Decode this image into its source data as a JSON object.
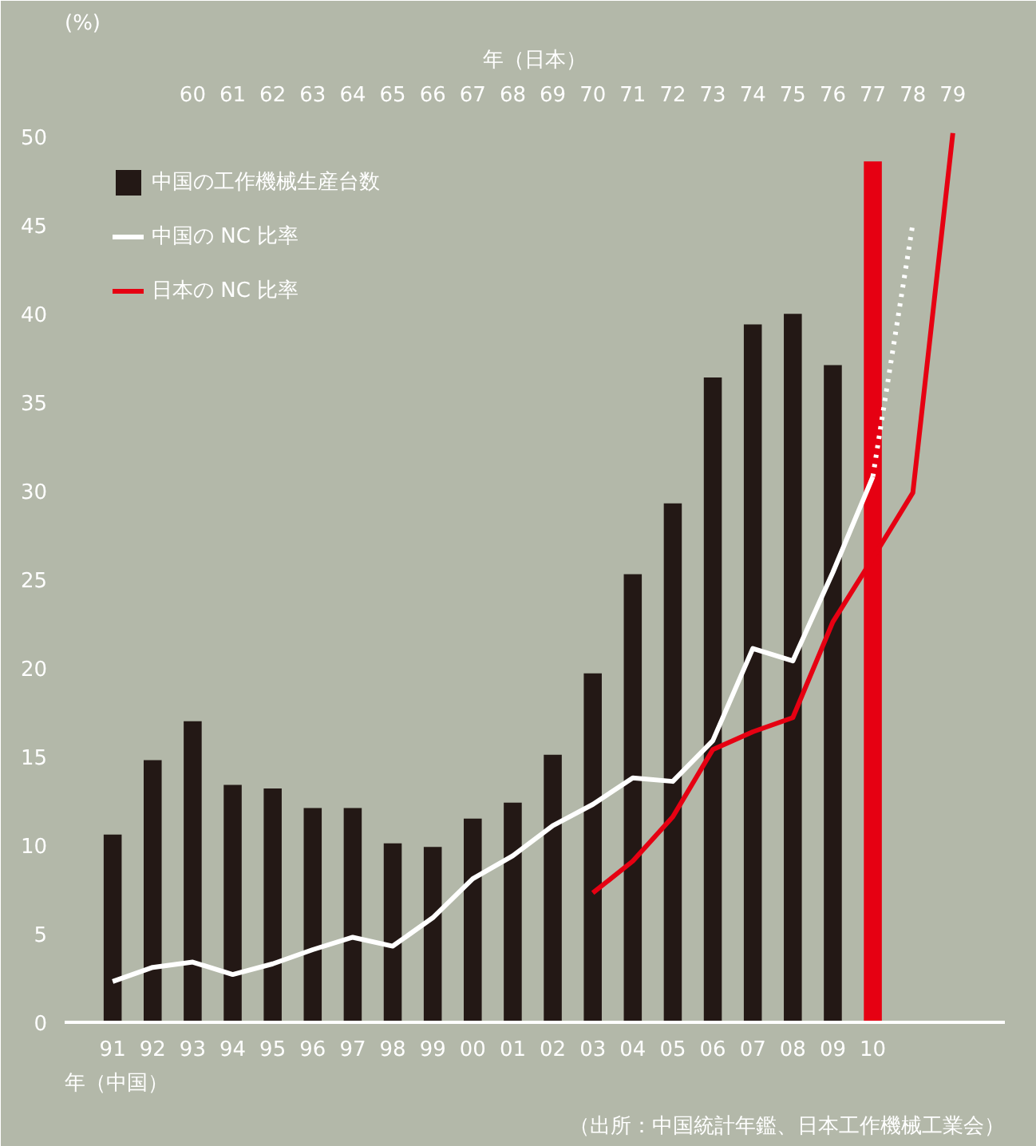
{
  "chart_data": {
    "type": "bar",
    "ylabel": "(%)",
    "xlabel": "年（中国）",
    "x2label": "年（日本）",
    "annotations": [
      "（出所：中国統計年鑑、日本工作機械工業会）"
    ],
    "xlim": [
      1989.8,
      2013.3
    ],
    "xticks": [
      {
        "value": 1991,
        "label": "91"
      },
      {
        "value": 1992,
        "label": "92"
      },
      {
        "value": 1993,
        "label": "93"
      },
      {
        "value": 1994,
        "label": "94"
      },
      {
        "value": 1995,
        "label": "95"
      },
      {
        "value": 1996,
        "label": "96"
      },
      {
        "value": 1997,
        "label": "97"
      },
      {
        "value": 1998,
        "label": "98"
      },
      {
        "value": 1999,
        "label": "99"
      },
      {
        "value": 2000,
        "label": "00"
      },
      {
        "value": 2001,
        "label": "01"
      },
      {
        "value": 2002,
        "label": "02"
      },
      {
        "value": 2003,
        "label": "03"
      },
      {
        "value": 2004,
        "label": "04"
      },
      {
        "value": 2005,
        "label": "05"
      },
      {
        "value": 2006,
        "label": "06"
      },
      {
        "value": 2007,
        "label": "07"
      },
      {
        "value": 2008,
        "label": "08"
      },
      {
        "value": 2009,
        "label": "09"
      },
      {
        "value": 2010,
        "label": "10"
      }
    ],
    "x2lim": [
      1956.8,
      1980.3
    ],
    "x2ticks": [
      {
        "value": 1960,
        "label": "60"
      },
      {
        "value": 1961,
        "label": "61"
      },
      {
        "value": 1962,
        "label": "62"
      },
      {
        "value": 1963,
        "label": "63"
      },
      {
        "value": 1964,
        "label": "64"
      },
      {
        "value": 1965,
        "label": "65"
      },
      {
        "value": 1966,
        "label": "66"
      },
      {
        "value": 1967,
        "label": "67"
      },
      {
        "value": 1968,
        "label": "68"
      },
      {
        "value": 1969,
        "label": "69"
      },
      {
        "value": 1970,
        "label": "70"
      },
      {
        "value": 1971,
        "label": "71"
      },
      {
        "value": 1972,
        "label": "72"
      },
      {
        "value": 1973,
        "label": "73"
      },
      {
        "value": 1974,
        "label": "74"
      },
      {
        "value": 1975,
        "label": "75"
      },
      {
        "value": 1976,
        "label": "76"
      },
      {
        "value": 1977,
        "label": "77"
      },
      {
        "value": 1978,
        "label": "78"
      },
      {
        "value": 1979,
        "label": "79"
      }
    ],
    "ylim": [
      0,
      51
    ],
    "yticks": [
      0,
      5,
      10,
      15,
      20,
      25,
      30,
      35,
      40,
      45,
      50
    ],
    "legend": "top left",
    "series": [
      {
        "name": "中国の工作機械生産台数",
        "x": [
          1991,
          1992,
          1993,
          1994,
          1995,
          1996,
          1997,
          1998,
          1999,
          2000,
          2001,
          2002,
          2003,
          2004,
          2005,
          2006,
          2007,
          2008,
          2009,
          2010
        ],
        "values": [
          10.6,
          14.8,
          17.0,
          13.4,
          13.2,
          12.1,
          12.1,
          10.1,
          9.9,
          11.5,
          12.4,
          15.1,
          19.7,
          25.3,
          29.3,
          36.4,
          39.4,
          40.0,
          37.1,
          48.6
        ],
        "colors": [
          "#231815",
          "#231815",
          "#231815",
          "#231815",
          "#231815",
          "#231815",
          "#231815",
          "#231815",
          "#231815",
          "#231815",
          "#231815",
          "#231815",
          "#231815",
          "#231815",
          "#231815",
          "#231815",
          "#231815",
          "#231815",
          "#231815",
          "#e60012"
        ]
      },
      {
        "name": "中国の NC 比率",
        "type": "line",
        "color": "#ffffff",
        "x": [
          1991,
          1992,
          1993,
          1994,
          1995,
          1996,
          1997,
          1998,
          1999,
          2000,
          2001,
          2002,
          2003,
          2004,
          2005,
          2006,
          2007,
          2008,
          2009,
          2010
        ],
        "values": [
          2.3,
          3.1,
          3.4,
          2.7,
          3.3,
          4.1,
          4.8,
          4.3,
          5.9,
          8.1,
          9.4,
          11.1,
          12.3,
          13.8,
          13.6,
          15.9,
          21.1,
          20.4,
          25.4,
          30.8
        ]
      },
      {
        "type": "line",
        "color": "#ffffff",
        "line_style": "dotted",
        "x": [
          2010,
          2011
        ],
        "values": [
          30.8,
          45.1
        ]
      },
      {
        "name": "日本の NC 比率",
        "type": "line",
        "color": "#e60012",
        "axis": "x2",
        "x": [
          1970,
          1971,
          1972,
          1973,
          1974,
          1975,
          1976,
          1977,
          1978,
          1979
        ],
        "values": [
          7.3,
          9.1,
          11.6,
          15.4,
          16.4,
          17.2,
          22.6,
          26.2,
          29.9,
          50.2
        ]
      }
    ]
  }
}
